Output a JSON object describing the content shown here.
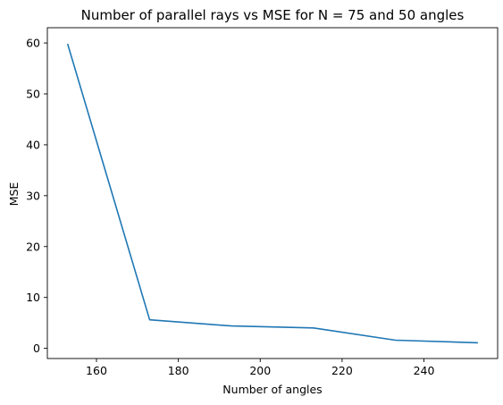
{
  "chart_data": {
    "type": "line",
    "title": "Number of parallel rays vs MSE for N = 75 and 50 angles",
    "xlabel": "Number of angles",
    "ylabel": "MSE",
    "x": [
      153,
      173,
      193,
      213,
      233,
      253
    ],
    "series": [
      {
        "values": [
          59.7,
          5.6,
          4.4,
          4.0,
          1.6,
          1.1
        ],
        "color": "#1f77b4"
      }
    ],
    "xlim": [
      148,
      258
    ],
    "ylim": [
      -2.0,
      63.0
    ],
    "xticks": [
      160,
      180,
      200,
      220,
      240
    ],
    "yticks": [
      0,
      10,
      20,
      30,
      40,
      50,
      60
    ],
    "grid": false,
    "legend": "none"
  }
}
